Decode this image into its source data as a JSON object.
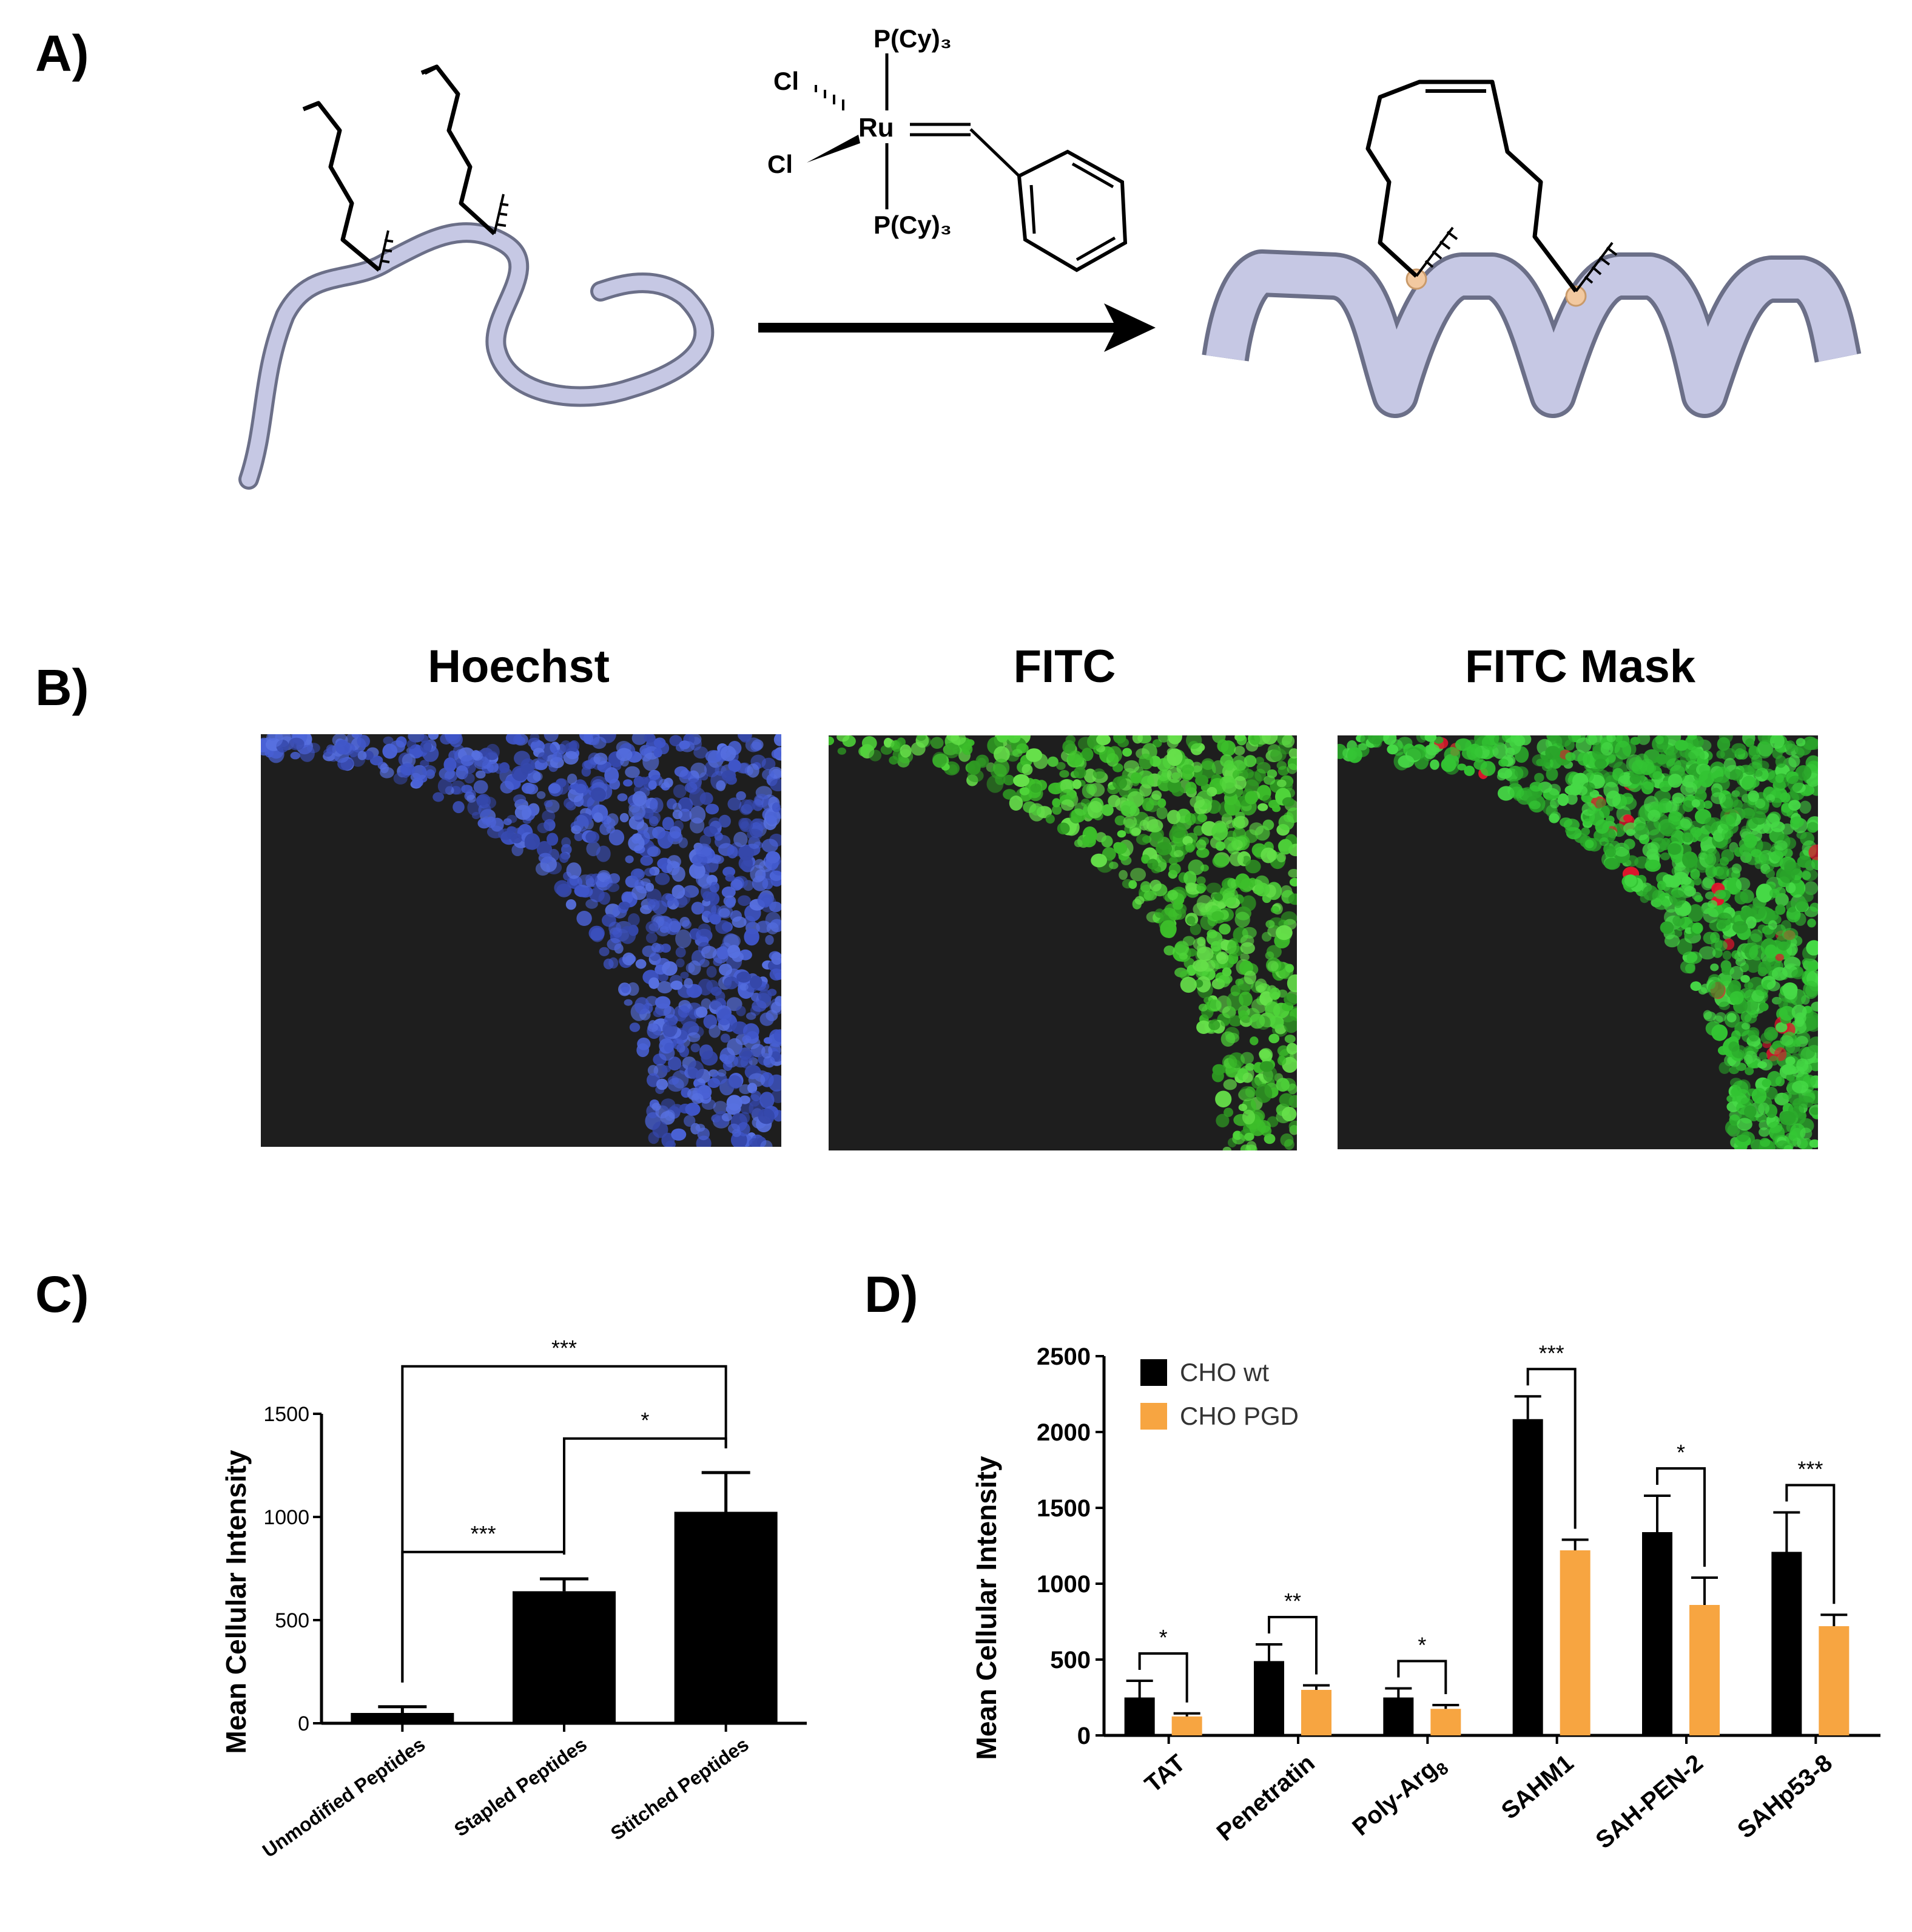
{
  "panel_a": {
    "label": "A)",
    "catalyst": {
      "ligand_top": "P(Cy)₃",
      "ligand_bottom": "P(Cy)₃",
      "cl1": "Cl",
      "cl2": "Cl",
      "metal": "Ru"
    }
  },
  "panel_b": {
    "label": "B)",
    "images": [
      {
        "title": "Hoechst",
        "channel": "blue"
      },
      {
        "title": "FITC",
        "channel": "green"
      },
      {
        "title": "FITC Mask",
        "channel": "mask"
      }
    ]
  },
  "panel_c": {
    "label": "C)"
  },
  "panel_d": {
    "label": "D)"
  },
  "chart_data": [
    {
      "type": "bar",
      "ylabel": "Mean Cellular Intensity",
      "ylim": [
        0,
        1500
      ],
      "yticks": [
        0,
        500,
        1000,
        1500
      ],
      "categories": [
        "Unmodified Peptides",
        "Stapled Peptides",
        "Stitched Peptides"
      ],
      "values": [
        50,
        640,
        1025
      ],
      "errors": [
        30,
        60,
        190
      ],
      "color": "#000000",
      "significance": [
        {
          "from": 0,
          "to": 2,
          "label": "***"
        },
        {
          "from": 1,
          "to": 2,
          "label": "*"
        },
        {
          "from": 0,
          "to": 1,
          "label": "***"
        }
      ]
    },
    {
      "type": "bar",
      "ylabel": "Mean Cellular Intensity",
      "ylim": [
        0,
        2500
      ],
      "yticks": [
        0,
        500,
        1000,
        1500,
        2000,
        2500
      ],
      "categories": [
        "TAT",
        "Penetratin",
        "Poly-Arg",
        "SAHM1",
        "SAH-PEN-2",
        "SAHp53-8"
      ],
      "category_subscripts": [
        "",
        "",
        "8",
        "",
        "",
        ""
      ],
      "series": [
        {
          "name": "CHO wt",
          "color": "#000000",
          "values": [
            250,
            490,
            250,
            2085,
            1340,
            1210
          ],
          "errors": [
            110,
            110,
            60,
            150,
            240,
            260
          ]
        },
        {
          "name": "CHO PGD",
          "color": "#f7a541",
          "values": [
            125,
            300,
            175,
            1220,
            860,
            720
          ],
          "errors": [
            20,
            30,
            25,
            70,
            180,
            75
          ]
        }
      ],
      "legend_position": "top-left",
      "significance": [
        "*",
        "**",
        "*",
        "***",
        "*",
        "***"
      ]
    }
  ]
}
